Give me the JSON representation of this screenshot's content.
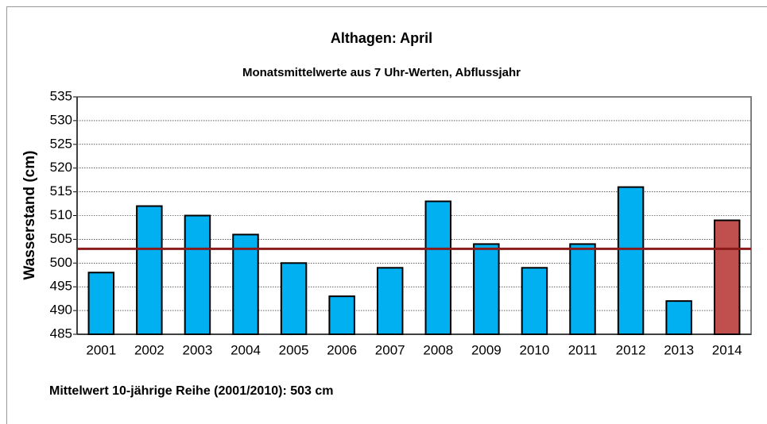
{
  "chart_data": {
    "type": "bar",
    "title": "Althagen: April",
    "subtitle": "Monatsmittelwerte aus 7 Uhr-Werten, Abflussjahr",
    "y_label": "Wasserstand (cm)",
    "categories": [
      "2001",
      "2002",
      "2003",
      "2004",
      "2005",
      "2006",
      "2007",
      "2008",
      "2009",
      "2010",
      "2011",
      "2012",
      "2013",
      "2014"
    ],
    "values": [
      498,
      512,
      510,
      506,
      500,
      493,
      499,
      513,
      504,
      499,
      504,
      516,
      492,
      509
    ],
    "colors": [
      "#00b0f0",
      "#00b0f0",
      "#00b0f0",
      "#00b0f0",
      "#00b0f0",
      "#00b0f0",
      "#00b0f0",
      "#00b0f0",
      "#00b0f0",
      "#00b0f0",
      "#00b0f0",
      "#00b0f0",
      "#00b0f0",
      "#c0504d"
    ],
    "ylim": [
      485,
      535
    ],
    "yticks": [
      485,
      490,
      495,
      500,
      505,
      510,
      515,
      520,
      525,
      530,
      535
    ],
    "grid": true,
    "reference_line": {
      "value": 503,
      "color": "#8b1a1a",
      "label": "Mittelwert 10-jährige Reihe (2001/2010): 503 cm"
    }
  }
}
